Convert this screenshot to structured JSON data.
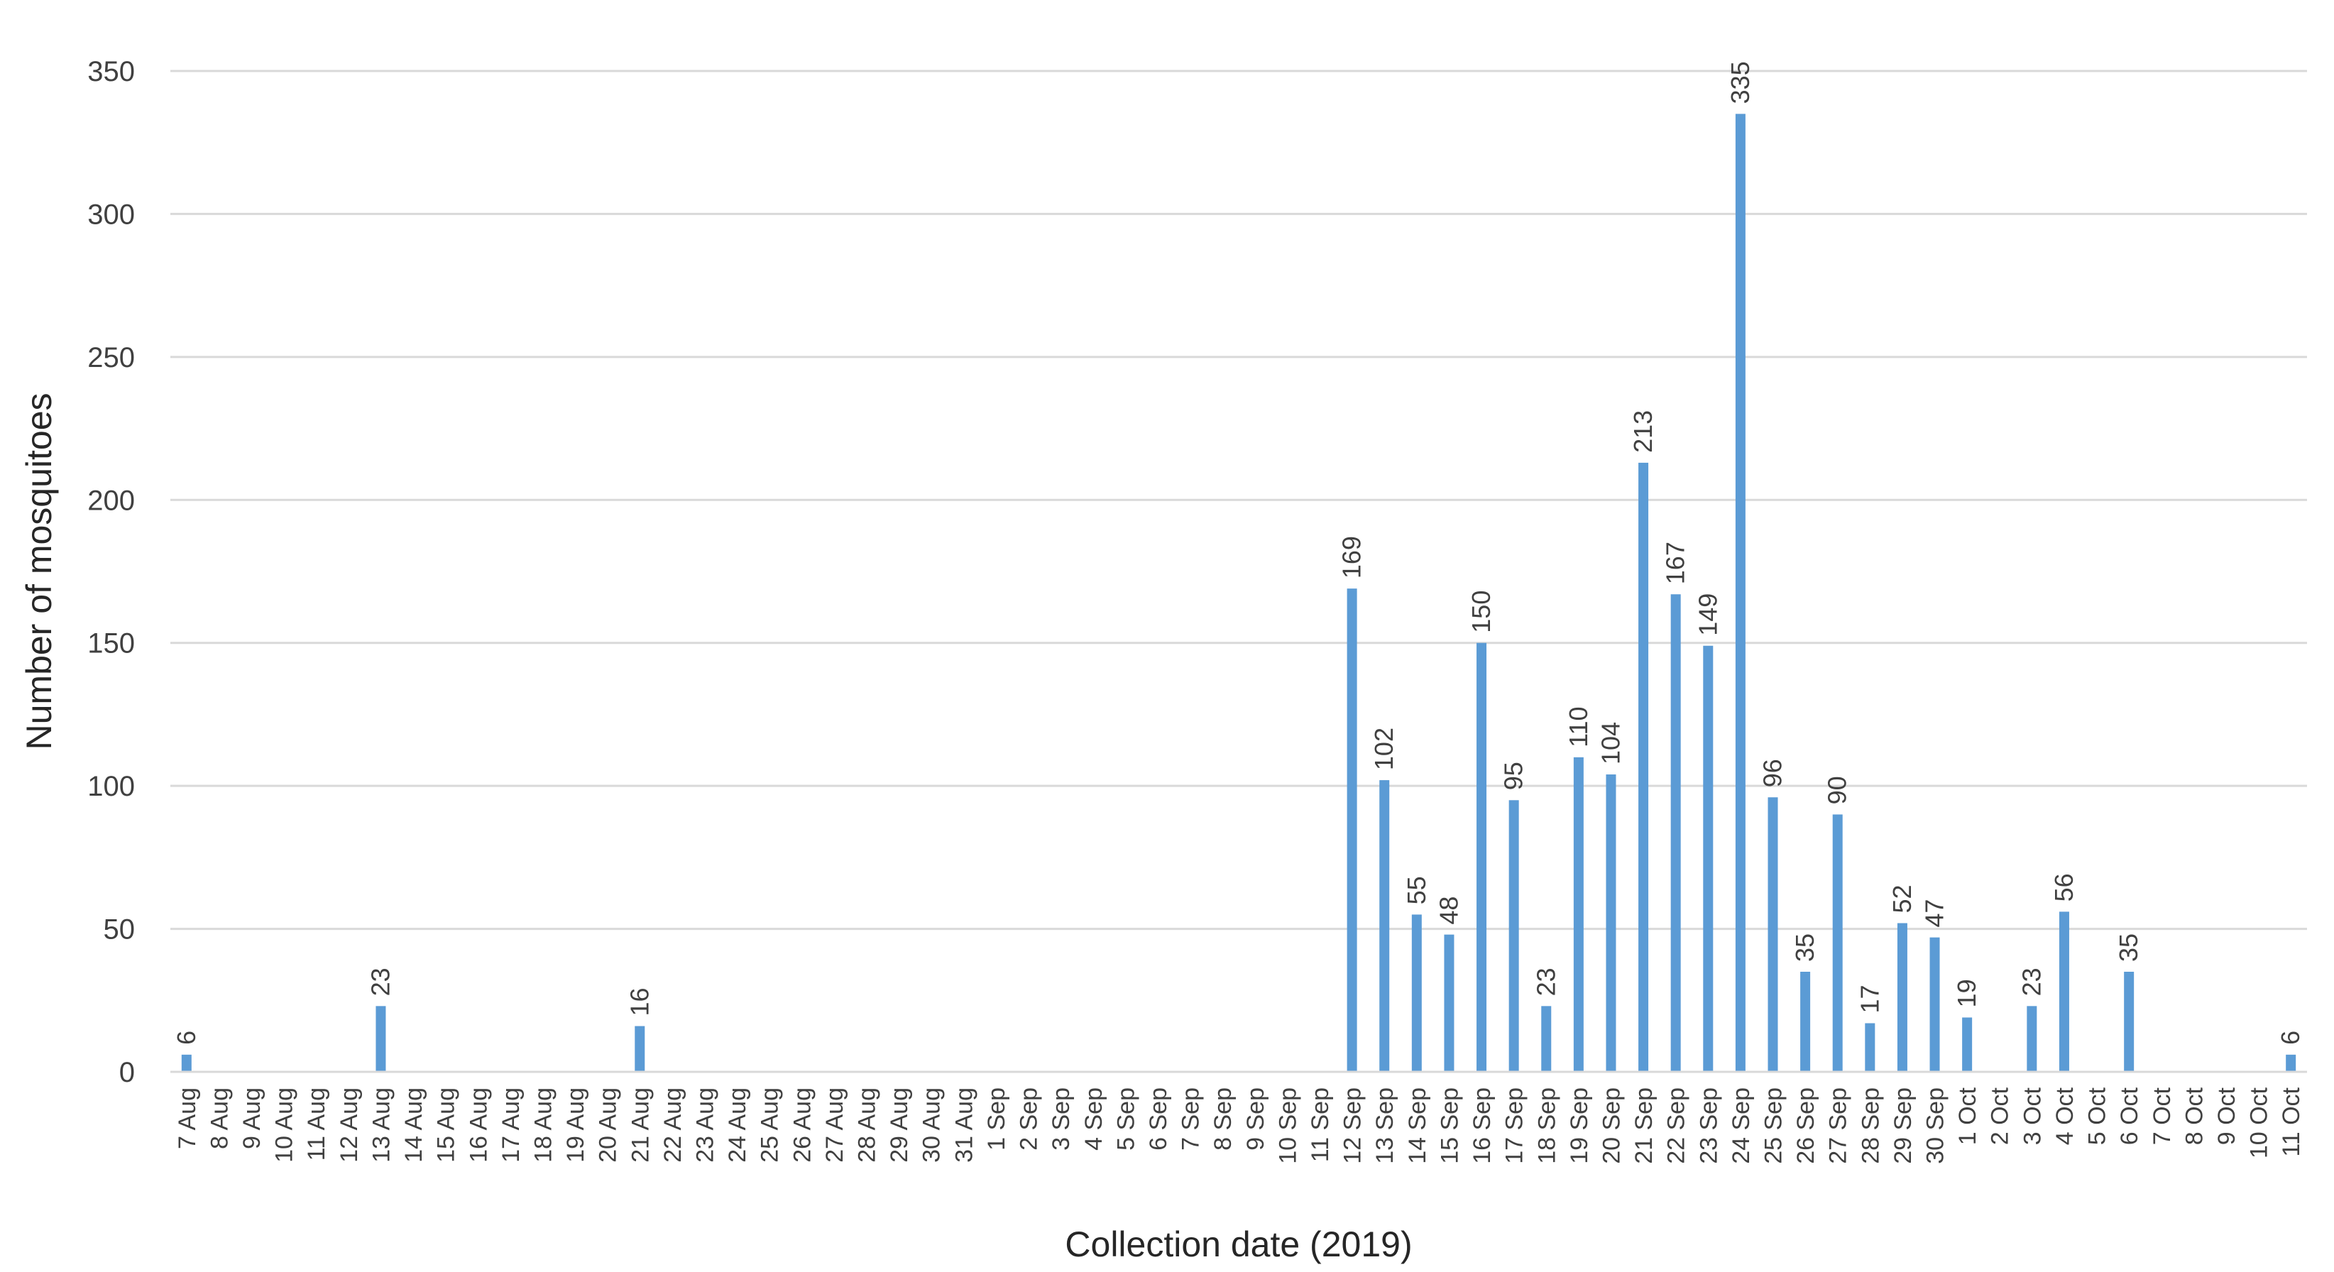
{
  "chart_data": {
    "type": "bar",
    "xlabel": "Collection date (2019)",
    "ylabel": "Number of mosquitoes",
    "ylim": [
      0,
      350
    ],
    "yticks": [
      0,
      50,
      100,
      150,
      200,
      250,
      300,
      350
    ],
    "grid": true,
    "bar_color": "#5b9bd5",
    "gridline_color": "#d9d9d9",
    "categories": [
      "7 Aug",
      "8 Aug",
      "9 Aug",
      "10 Aug",
      "11 Aug",
      "12 Aug",
      "13 Aug",
      "14 Aug",
      "15 Aug",
      "16 Aug",
      "17 Aug",
      "18 Aug",
      "19 Aug",
      "20 Aug",
      "21 Aug",
      "22 Aug",
      "23 Aug",
      "24 Aug",
      "25 Aug",
      "26 Aug",
      "27 Aug",
      "28 Aug",
      "29 Aug",
      "30 Aug",
      "31 Aug",
      "1 Sep",
      "2 Sep",
      "3 Sep",
      "4 Sep",
      "5 Sep",
      "6 Sep",
      "7 Sep",
      "8 Sep",
      "9 Sep",
      "10 Sep",
      "11 Sep",
      "12 Sep",
      "13 Sep",
      "14 Sep",
      "15 Sep",
      "16 Sep",
      "17 Sep",
      "18 Sep",
      "19 Sep",
      "20 Sep",
      "21 Sep",
      "22 Sep",
      "23 Sep",
      "24 Sep",
      "25 Sep",
      "26 Sep",
      "27 Sep",
      "28 Sep",
      "29 Sep",
      "30 Sep",
      "1 Oct",
      "2 Oct",
      "3 Oct",
      "4 Oct",
      "5 Oct",
      "6 Oct",
      "7 Oct",
      "8 Oct",
      "9 Oct",
      "10 Oct",
      "11 Oct"
    ],
    "values": [
      6,
      null,
      null,
      null,
      null,
      null,
      23,
      null,
      null,
      null,
      null,
      null,
      null,
      null,
      16,
      null,
      null,
      null,
      null,
      null,
      null,
      null,
      null,
      null,
      null,
      null,
      null,
      null,
      null,
      null,
      null,
      null,
      null,
      null,
      null,
      null,
      169,
      102,
      55,
      48,
      150,
      95,
      23,
      110,
      104,
      213,
      167,
      149,
      335,
      96,
      35,
      90,
      17,
      52,
      47,
      19,
      null,
      23,
      56,
      null,
      35,
      null,
      null,
      null,
      null,
      6
    ]
  }
}
